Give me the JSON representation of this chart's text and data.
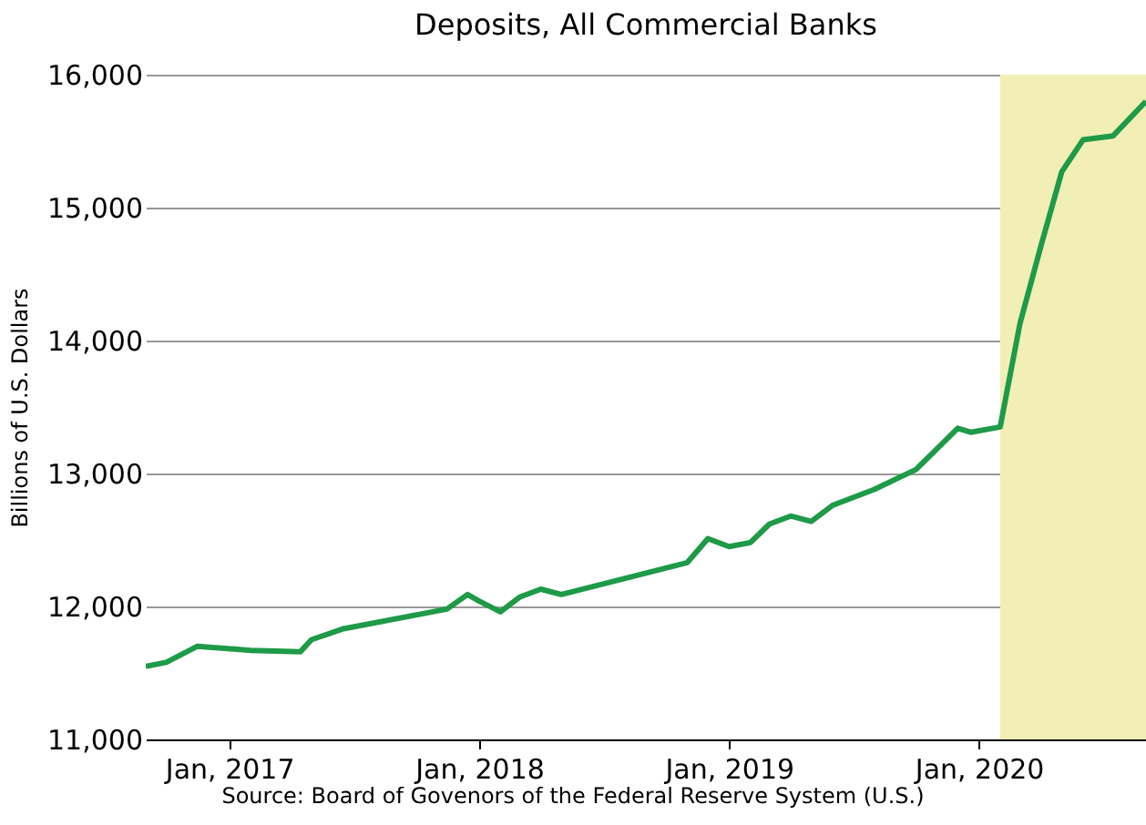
{
  "chart_data": {
    "type": "line",
    "title": "Deposits, All Commercial Banks",
    "ylabel": "Billions of U.S. Dollars",
    "x": [
      "2016-09-01",
      "2016-10-01",
      "2016-11-15",
      "2017-02-01",
      "2017-04-15",
      "2017-05-01",
      "2017-06-15",
      "2017-11-15",
      "2017-12-15",
      "2018-01-01",
      "2018-02-01",
      "2018-03-01",
      "2018-04-01",
      "2018-05-01",
      "2018-11-01",
      "2018-12-01",
      "2019-01-01",
      "2019-02-01",
      "2019-03-01",
      "2019-04-01",
      "2019-05-01",
      "2019-06-01",
      "2019-08-01",
      "2019-10-01",
      "2019-12-01",
      "2019-12-20",
      "2020-02-01",
      "2020-03-01",
      "2020-04-01",
      "2020-05-01",
      "2020-06-01",
      "2020-07-15",
      "2020-09-01"
    ],
    "series": [
      {
        "color": "#1e9a48",
        "values": [
          11550,
          11580,
          11700,
          11670,
          11660,
          11750,
          11830,
          11980,
          12090,
          12040,
          11960,
          12070,
          12130,
          12090,
          12330,
          12510,
          12450,
          12480,
          12620,
          12680,
          12640,
          12760,
          12880,
          13030,
          13340,
          13310,
          13350,
          14130,
          14720,
          15270,
          15510,
          15540,
          15800
        ]
      }
    ],
    "xlim": [
      "2016-09-01",
      "2020-09-01"
    ],
    "xticks": [
      {
        "value": "2017-01-01",
        "label": "Jan, 2017"
      },
      {
        "value": "2018-01-01",
        "label": "Jan, 2018"
      },
      {
        "value": "2019-01-01",
        "label": "Jan, 2019"
      },
      {
        "value": "2020-01-01",
        "label": "Jan, 2020"
      }
    ],
    "ylim": [
      11000,
      16000
    ],
    "yticks": [
      {
        "value": 11000,
        "label": "11,000"
      },
      {
        "value": 12000,
        "label": "12,000"
      },
      {
        "value": 13000,
        "label": "13,000"
      },
      {
        "value": 14000,
        "label": "14,000"
      },
      {
        "value": 15000,
        "label": "15,000"
      },
      {
        "value": 16000,
        "label": "16,000"
      }
    ],
    "grid": "y",
    "line_style": "solid",
    "marker": "none",
    "bands": [
      {
        "axis": "x",
        "from": "2020-02-01",
        "to": "2020-09-01",
        "color": "#f2efb6"
      }
    ],
    "annotations": [
      "Source: Board of Govenors of the Federal Reserve System (U.S.)"
    ]
  }
}
